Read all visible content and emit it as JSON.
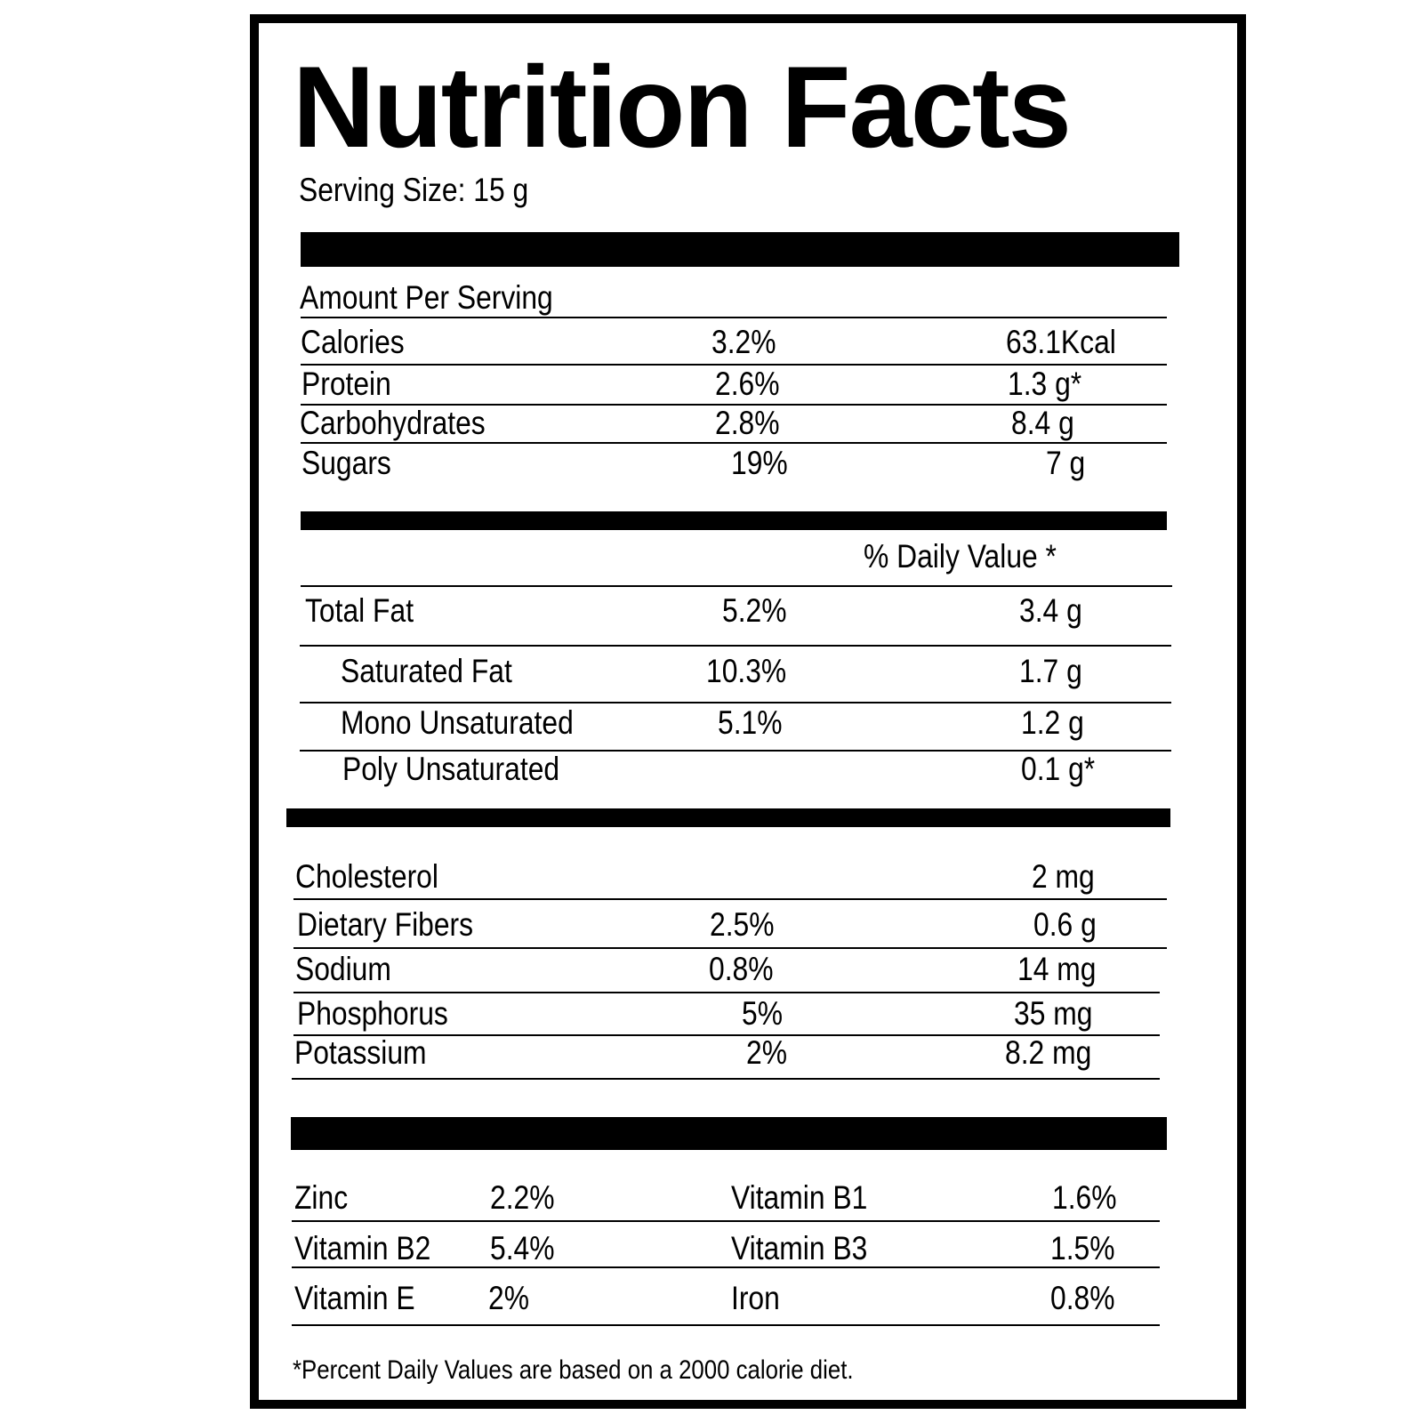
{
  "header": {
    "title": "Nutrition Facts",
    "serving_size": "Serving Size: 15 g"
  },
  "amount_section": {
    "heading": "Amount Per Serving",
    "rows": [
      {
        "name": "Calories",
        "percent": "3.2%",
        "amount": "63.1Kcal"
      },
      {
        "name": "Protein",
        "percent": "2.6%",
        "amount": "1.3 g*"
      },
      {
        "name": "Carbohydrates",
        "percent": "2.8%",
        "amount": "8.4 g"
      },
      {
        "name": "Sugars",
        "percent": "19%",
        "amount": "7 g"
      }
    ]
  },
  "fat_section": {
    "daily_value_heading": "% Daily Value *",
    "rows": [
      {
        "name": "Total Fat",
        "percent": "5.2%",
        "amount": "3.4 g"
      },
      {
        "name": "Saturated Fat",
        "percent": "10.3%",
        "amount": "1.7 g"
      },
      {
        "name": "Mono Unsaturated",
        "percent": "5.1%",
        "amount": "1.2 g"
      },
      {
        "name": "Poly Unsaturated",
        "percent": "",
        "amount": "0.1 g*"
      }
    ]
  },
  "minerals_section": {
    "rows": [
      {
        "name": "Cholesterol",
        "percent": "",
        "amount": "2 mg"
      },
      {
        "name": "Dietary Fibers",
        "percent": "2.5%",
        "amount": "0.6 g"
      },
      {
        "name": "Sodium",
        "percent": "0.8%",
        "amount": "14 mg"
      },
      {
        "name": "Phosphorus",
        "percent": "5%",
        "amount": "35 mg"
      },
      {
        "name": "Potassium",
        "percent": "2%",
        "amount": "8.2 mg"
      }
    ]
  },
  "vitamins_section": {
    "rows": [
      {
        "left_name": "Zinc",
        "left_percent": "2.2%",
        "right_name": "Vitamin B1",
        "right_percent": "1.6%"
      },
      {
        "left_name": "Vitamin B2",
        "left_percent": "5.4%",
        "right_name": "Vitamin B3",
        "right_percent": "1.5%"
      },
      {
        "left_name": "Vitamin E",
        "left_percent": "2%",
        "right_name": "Iron",
        "right_percent": "0.8%"
      }
    ]
  },
  "footnote": "*Percent Daily Values are based on a 2000 calorie diet."
}
